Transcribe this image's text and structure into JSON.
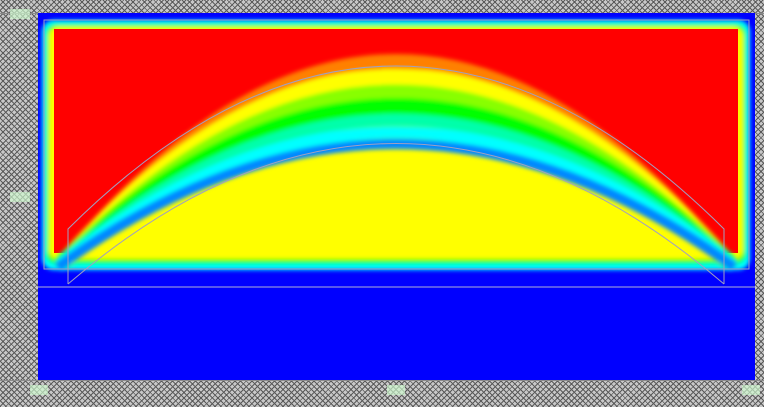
{
  "canvas": {
    "background_pattern": "crosshatch",
    "field_colors": [
      "#0000ff",
      "#00ffff",
      "#00ff00",
      "#ffff00",
      "#ff0000"
    ]
  },
  "axis_ticks": {
    "y_top": "",
    "y_mid": "",
    "x_left": "",
    "x_mid": "",
    "x_right": ""
  }
}
